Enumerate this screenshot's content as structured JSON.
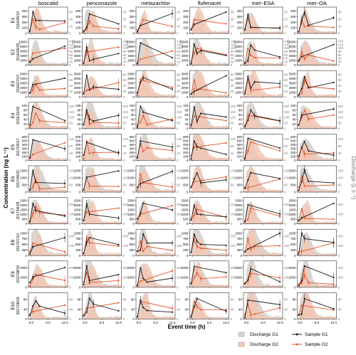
{
  "chart_data": {
    "type": "line",
    "compounds": [
      "boscalid",
      "penconazole",
      "metazachlor",
      "flufenacet",
      "met−ESA",
      "met−OA"
    ],
    "events": [
      {
        "id": "E1",
        "date": "2016/06/14"
      },
      {
        "id": "E2",
        "date": "2016/06/25"
      },
      {
        "id": "E3",
        "date": "2016/07/13"
      },
      {
        "id": "E4",
        "date": "2016/10/18"
      },
      {
        "id": "E5",
        "date": "2017/06/17"
      },
      {
        "id": "E6",
        "date": "2017/06/20"
      },
      {
        "id": "E7",
        "date": "2017/06/28"
      },
      {
        "id": "E8",
        "date": "2017/07/10"
      },
      {
        "id": "E9",
        "date": "2017/08/10"
      },
      {
        "id": "E10",
        "date": "2017/08/18"
      }
    ],
    "xlabel": "Event time (h)",
    "ylabel": "Concentration (ng L⁻¹)",
    "ylabel_right": "Discharge (L s⁻¹)",
    "x_ticks": [
      "0.0",
      "6.0",
      "12.0"
    ],
    "x_range": [
      -1,
      13
    ],
    "y_ticks": [
      [
        "0",
        "100",
        "200",
        "300",
        "400"
      ],
      [
        "0",
        "2000",
        "4000",
        "6000",
        "8000",
        "10000"
      ],
      [
        "0",
        "1000",
        "2000",
        "3000",
        "4000",
        "5000"
      ],
      [
        "0",
        "20",
        "40",
        "60",
        "80",
        "100"
      ],
      [
        "0",
        "100",
        "200",
        "300",
        "400",
        "500",
        "600"
      ],
      [
        "0",
        "500",
        "1000",
        "1500"
      ],
      [
        "0",
        "500",
        "1000",
        "1500",
        "2000",
        "2500"
      ],
      [
        "0",
        "250",
        "500",
        "750",
        "1000"
      ],
      [
        "0",
        "1000",
        "2000"
      ],
      [
        "0",
        "40",
        "80"
      ]
    ],
    "y2_ticks": [
      [
        "0",
        "10",
        "20",
        "30"
      ],
      [
        "0",
        "20",
        "40",
        "60",
        "80",
        "100",
        "120",
        "140"
      ],
      [
        "0",
        "20",
        "40",
        "60",
        "80"
      ],
      [
        "0",
        "50",
        "100",
        "150",
        "200"
      ],
      [
        "0",
        "40",
        "80",
        "120"
      ],
      [
        "0",
        "50",
        "100",
        "150"
      ],
      [
        "0",
        "100",
        "200"
      ],
      [
        "0",
        "100",
        "200"
      ],
      [
        "0",
        "200",
        "400"
      ],
      [
        "0",
        "40",
        "80"
      ]
    ],
    "legend": {
      "discharge_g1": "Discharge G1",
      "discharge_g2": "Discharge G2",
      "sample_g1": "Sample G1",
      "sample_g2": "Sample G2"
    },
    "colors": {
      "g1_line": "#1a1a1a",
      "g2_line": "#e0562b",
      "discharge_g1_fill": "#d9d6d2",
      "discharge_g2_fill": "#f2c6b4",
      "axis": "#333333"
    }
  }
}
